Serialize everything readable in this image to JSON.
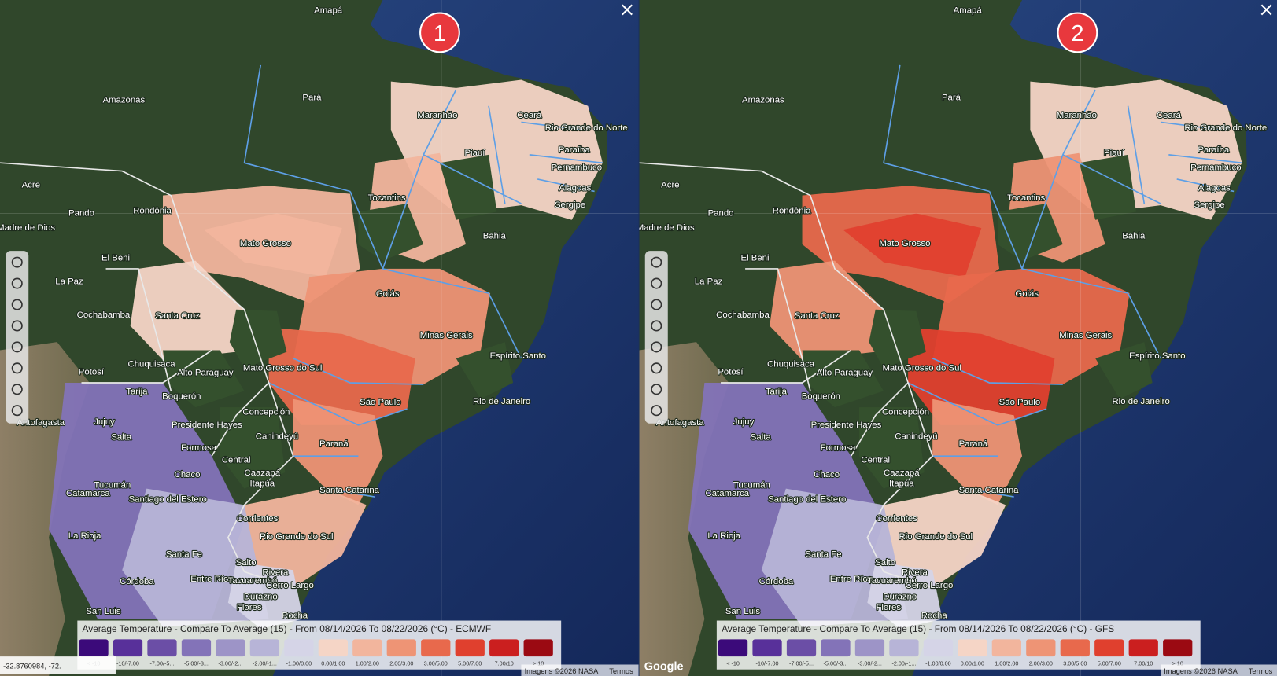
{
  "panels": [
    {
      "badge": "1",
      "legend_title": "Average Temperature - Compare To Average (15) - From 08/14/2026 To 08/22/2026 (°C) - ECMWF"
    },
    {
      "badge": "2",
      "legend_title": "Average Temperature - Compare To Average (15) - From 08/14/2026 To 08/22/2026 (°C) - GFS"
    }
  ],
  "legend_labels": [
    "< -10",
    "-10/-7.00",
    "-7.00/-5...",
    "-5.00/-3...",
    "-3.00/-2...",
    "-2.00/-1...",
    "-1.00/0.00",
    "0.00/1.00",
    "1.00/2.00",
    "2.00/3.00",
    "3.00/5.00",
    "5.00/7.00",
    "7.00/10",
    "> 10"
  ],
  "legend_colors": [
    "#3b0a7a",
    "#58309a",
    "#6b4ea6",
    "#8373b8",
    "#9d94c7",
    "#b7b4d7",
    "#d5d4e7",
    "#f5d5c6",
    "#f2b59d",
    "#ee9475",
    "#e8694c",
    "#e0402e",
    "#cb1f1f",
    "#9b0a12"
  ],
  "place_labels": [
    "Amapá",
    "Amazonas",
    "Pará",
    "Maranhão",
    "Ceará",
    "Rio Grande do Norte",
    "Piauí",
    "Paraíba",
    "Pernambuco",
    "Alagoas",
    "Sergipe",
    "Acre",
    "Tocantins",
    "Bahia",
    "Rondônia",
    "Pando",
    "Madre de Dios",
    "Mato Grosso",
    "El Beni",
    "La Paz",
    "Goiás",
    "Cochabamba",
    "Santa Cruz",
    "Minas Gerais",
    "Espírito Santo",
    "Chuquisaca",
    "Potosí",
    "Alto Paraguay",
    "Mato Grosso do Sul",
    "Tarija",
    "Boquerón",
    "São Paulo",
    "Rio de Janeiro",
    "Antofagasta",
    "Jujuy",
    "Concepción",
    "Presidente Hayes",
    "Salta",
    "Canindeyú",
    "Paraná",
    "Formosa",
    "Central",
    "Chaco",
    "Caazapá",
    "Itapúa",
    "Santa Catarina",
    "Tucumán",
    "Catamarca",
    "Santiago del Estero",
    "Corrientes",
    "La Rioja",
    "Rio Grande do Sul",
    "Santa Fe",
    "Salto",
    "Entre Ríos",
    "Rivera",
    "Tacuarembó",
    "Córdoba",
    "Cerro Largo",
    "Durazno",
    "Flores",
    "San Luis",
    "Rocha"
  ],
  "coordinates": "-32.8760984, -72.",
  "attribution": "Imagens ©2026 NASA",
  "terms": "Termos",
  "google": "Google"
}
